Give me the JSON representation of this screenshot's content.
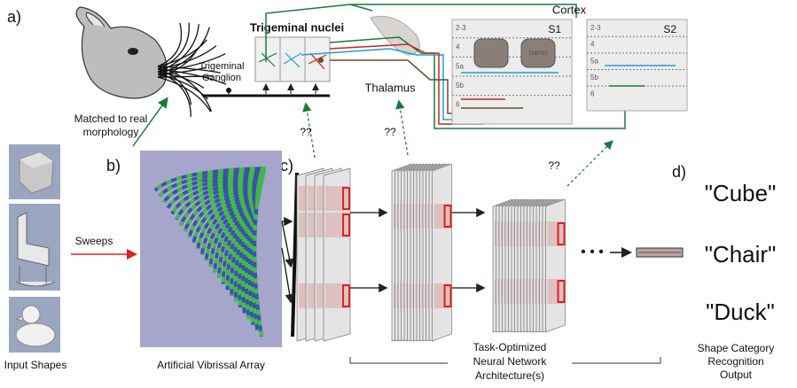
{
  "panel_labels": [
    "a)",
    "b)",
    "c)",
    "d)"
  ],
  "cortex": {
    "title": "Cortex",
    "areas": [
      {
        "name": "S1",
        "layers": [
          "2-3",
          "4",
          "5a",
          "5b",
          "6"
        ],
        "barrel": "barrel"
      },
      {
        "name": "S2",
        "layers": [
          "2-3",
          "4",
          "5a",
          "5b",
          "6"
        ]
      }
    ]
  },
  "trigeminal_nuclei": "Trigeminal nuclei",
  "trigeminal_ganglion": [
    "Trigeminal",
    "Ganglion"
  ],
  "thalamus": "Thalamus",
  "morphology_note": [
    "Matched to real",
    "morphology"
  ],
  "unknown_links": [
    "??",
    "??",
    "??"
  ],
  "sweeps": "Sweeps",
  "input_shapes": "Input Shapes",
  "vibrissal_array": "Artificial Vibrissal Array",
  "network_label": [
    "Task-Optimized",
    "Neural Network",
    "Architecture(s)"
  ],
  "output_label": [
    "Shape Category",
    "Recognition",
    "Output"
  ],
  "categories": [
    "\"Cube\"",
    "\"Chair\"",
    "\"Duck\""
  ],
  "ellipsis": "• • •"
}
